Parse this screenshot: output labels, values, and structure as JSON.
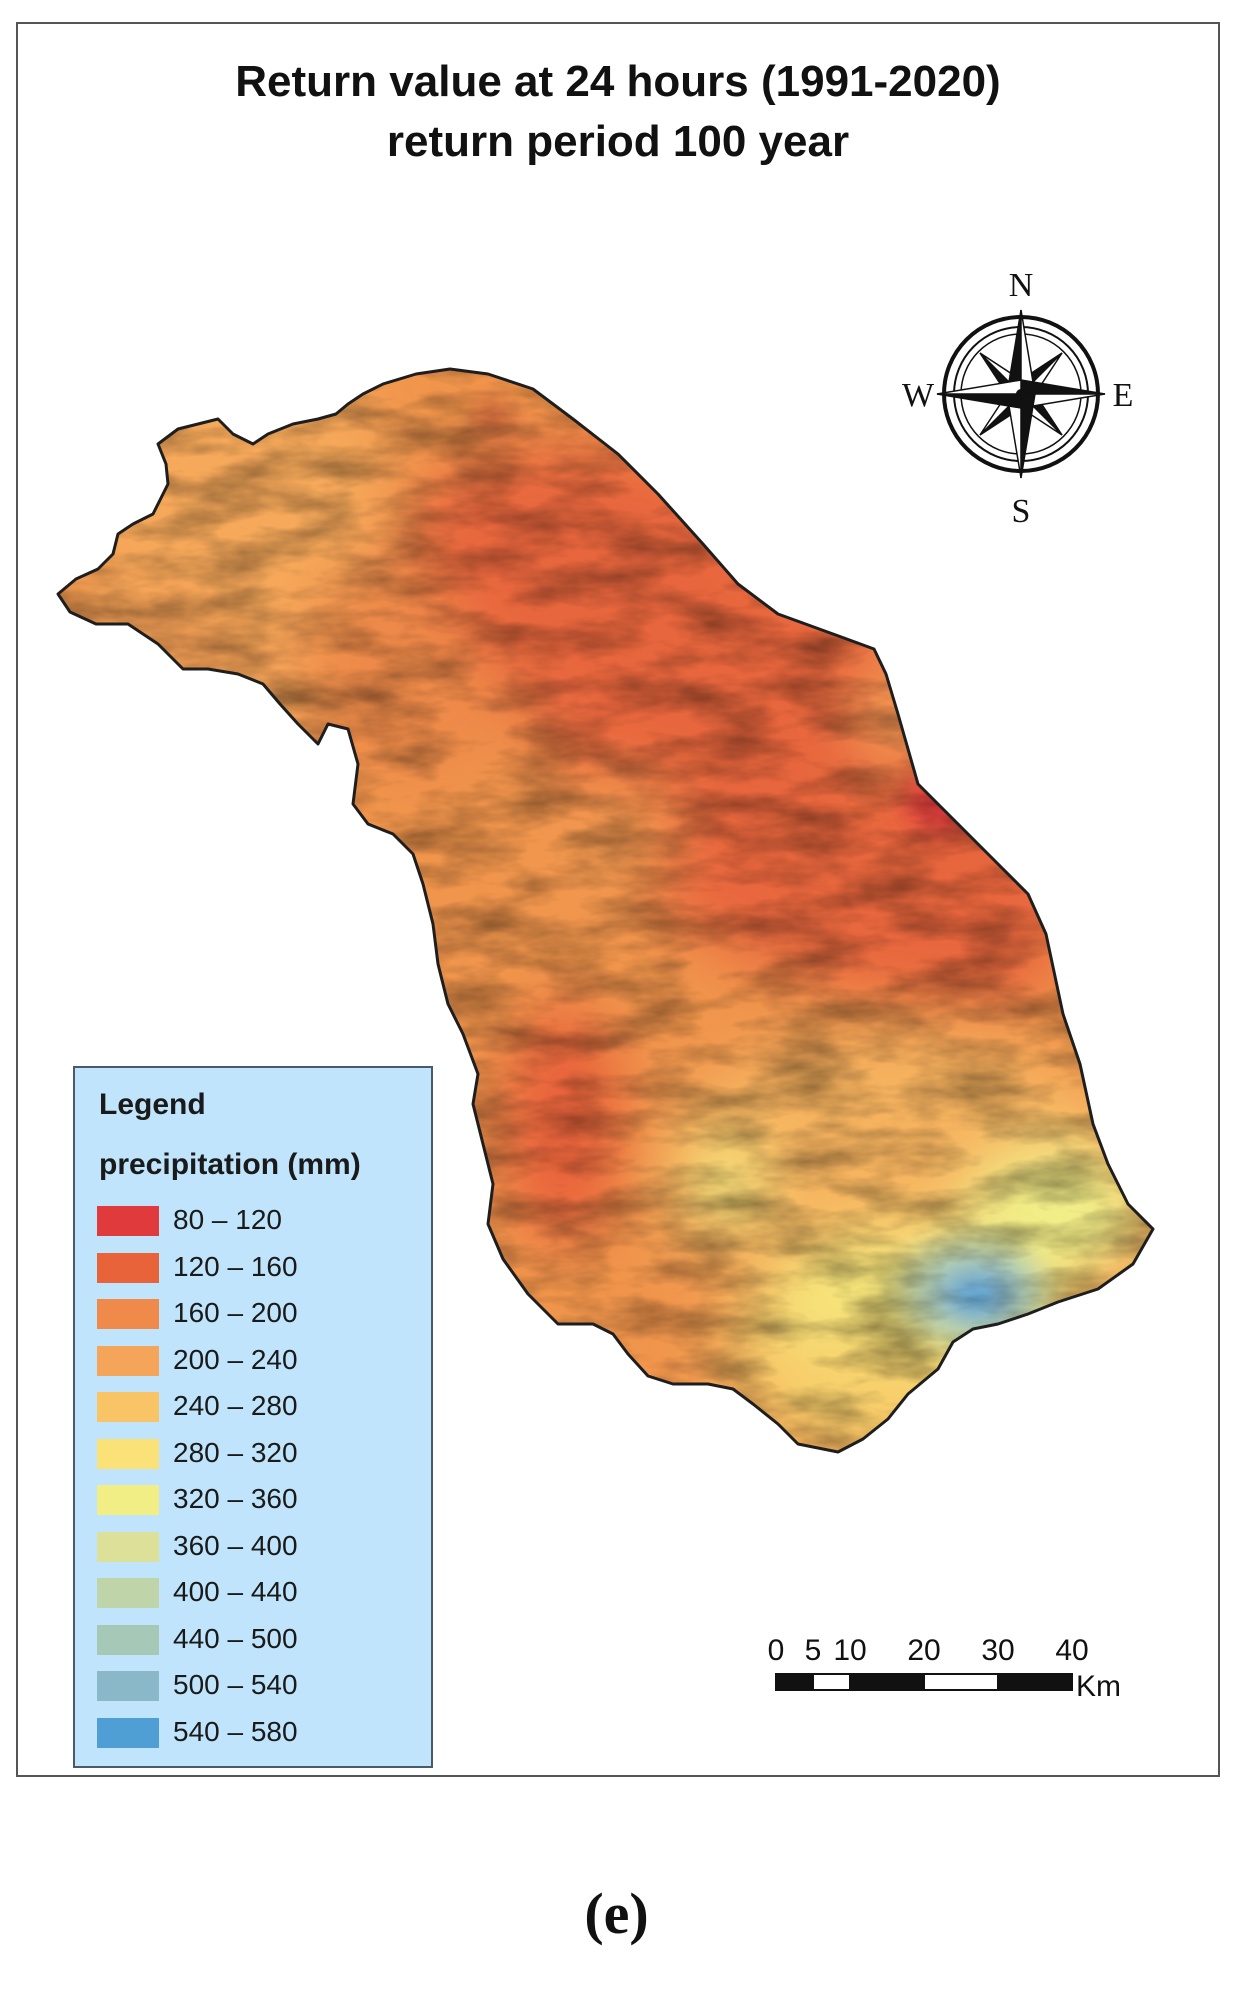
{
  "title": {
    "line1": "Return value at 24 hours (1991-2020)",
    "line2": "return period 100 year"
  },
  "compass": {
    "north": "N",
    "south": "S",
    "east": "E",
    "west": "W"
  },
  "legend": {
    "title": "Legend",
    "subtitle": "precipitation (mm)",
    "classes": [
      {
        "label": "80 – 120",
        "color": "#e03a3c"
      },
      {
        "label": "120 – 160",
        "color": "#e8623a"
      },
      {
        "label": "160 – 200",
        "color": "#f08a4a"
      },
      {
        "label": "200 – 240",
        "color": "#f4a55a"
      },
      {
        "label": "240 – 280",
        "color": "#f8c466"
      },
      {
        "label": "280 – 320",
        "color": "#fbe278"
      },
      {
        "label": "320 – 360",
        "color": "#f2ee86"
      },
      {
        "label": "360 – 400",
        "color": "#dde098"
      },
      {
        "label": "400 – 440",
        "color": "#bfd4a8"
      },
      {
        "label": "440 – 500",
        "color": "#a6c8b6"
      },
      {
        "label": "500 – 540",
        "color": "#8ab8c8"
      },
      {
        "label": "540 – 580",
        "color": "#4f9ed4"
      }
    ]
  },
  "scale_bar": {
    "ticks": [
      "0",
      "5",
      "10",
      "20",
      "30",
      "40"
    ],
    "tick_km": [
      0,
      5,
      10,
      20,
      30,
      40
    ],
    "unit": "Km"
  },
  "caption": "(e)"
}
